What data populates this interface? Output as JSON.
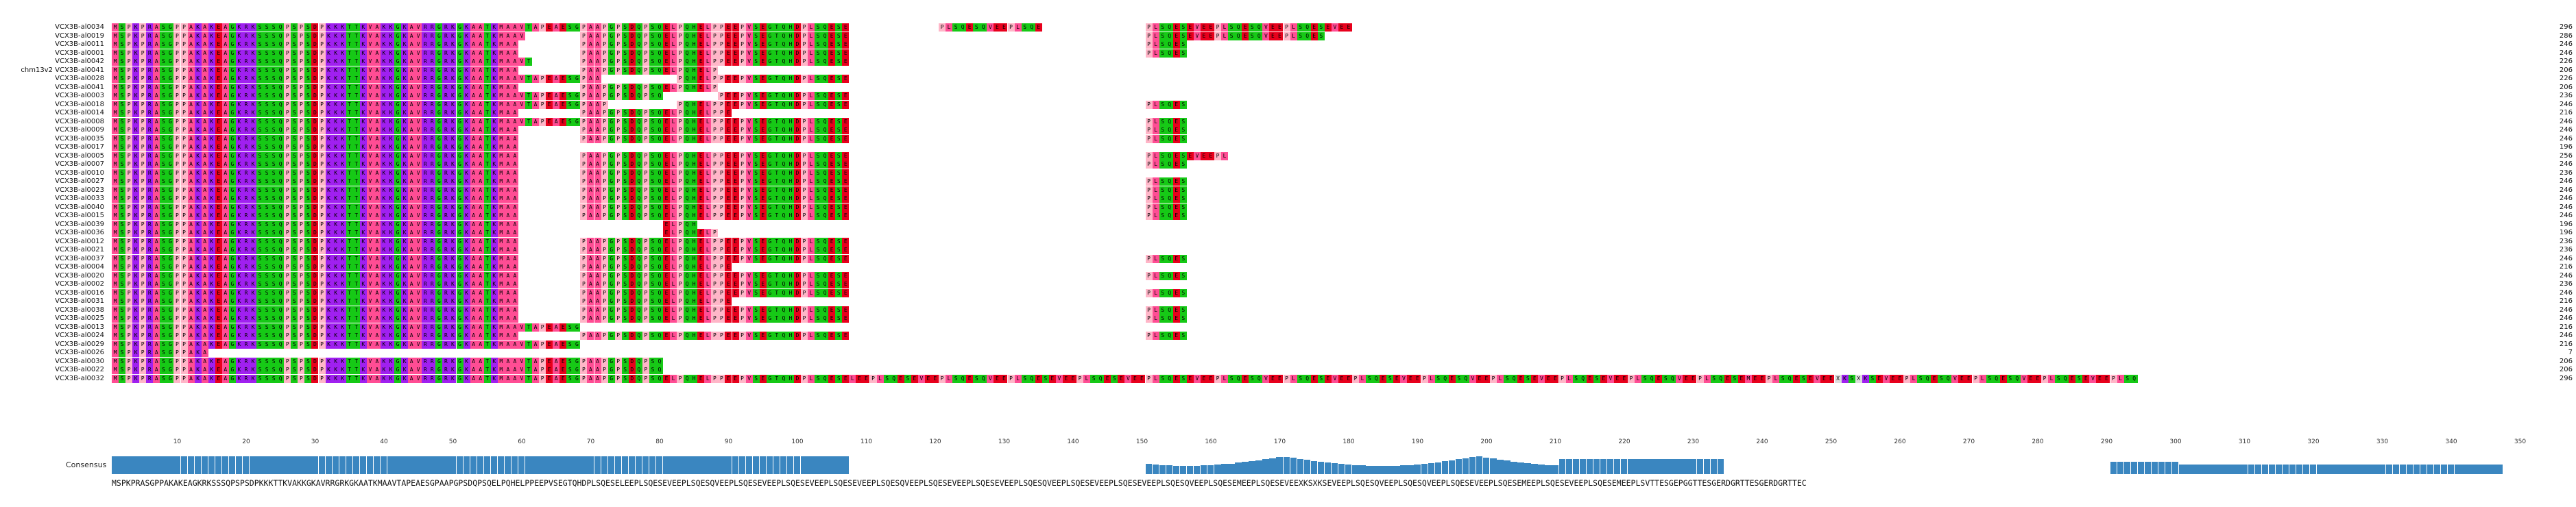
{
  "sequence_names": [
    "VCX3B-al0034",
    "VCX3B-al0019",
    "VCX3B-al0011",
    "VCX3B-al0001",
    "VCX3B-al0042",
    "chm13v2 VCX3B-al0041",
    "VCX3B-al0028",
    "VCX3B-al0041",
    "VCX3B-al0003",
    "VCX3B-al0018",
    "VCX3B-al0014",
    "VCX3B-al0008",
    "VCX3B-al0009",
    "VCX3B-al0035",
    "VCX3B-al0017",
    "VCX3B-al0005",
    "VCX3B-al0007",
    "VCX3B-al0010",
    "VCX3B-al0027",
    "VCX3B-al0023",
    "VCX3B-al0033",
    "VCX3B-al0040",
    "VCX3B-al0015",
    "VCX3B-al0039",
    "VCX3B-al0036",
    "VCX3B-al0012",
    "VCX3B-al0021",
    "VCX3B-al0037",
    "VCX3B-al0004",
    "VCX3B-al0020",
    "VCX3B-al0002",
    "VCX3B-al0016",
    "VCX3B-al0031",
    "VCX3B-al0038",
    "VCX3B-al0025",
    "VCX3B-al0013",
    "VCX3B-al0024",
    "VCX3B-al0029",
    "VCX3B-al0026",
    "VCX3B-al0030",
    "VCX3B-al0022",
    "VCX3B-al0032"
  ],
  "sequence_lengths": [
    "296",
    "286",
    "246",
    "246",
    "226",
    "206",
    "226",
    "206",
    "236",
    "246",
    "216",
    "246",
    "246",
    "246",
    "196",
    "256",
    "246",
    "236",
    "246",
    "246",
    "246",
    "246",
    "246",
    "196",
    "196",
    "236",
    "236",
    "246",
    "216",
    "246",
    "236",
    "246",
    "216",
    "246",
    "246",
    "216",
    "246",
    "216",
    "7",
    "206",
    "206",
    "296"
  ],
  "ruler_ticks": [
    "10",
    "20",
    "30",
    "40",
    "50",
    "60",
    "70",
    "80",
    "90",
    "100",
    "110",
    "120",
    "130",
    "140",
    "150",
    "160",
    "170",
    "180",
    "190",
    "200",
    "210",
    "220",
    "230",
    "240",
    "250",
    "260",
    "270",
    "280",
    "290",
    "300",
    "310",
    "320",
    "330",
    "340",
    "350"
  ],
  "consensus_label": "Consensus",
  "consensus_sequence": "MSPKPRASGPPAKAKEAGKRKSSSQPSPSDPKKKTTKVAKKGKAVRRGRKGKAATKMAAVTAPEAESGPAAPGPSDQPSQELPQHELPPEEPVSEGTQHDPLSQESELEEPLSQESEVEEPLSQESQVEEPLSQESEVEEPLSQESEVEEPLSQESEVEEPLSQESQVEEPLSQESEVEEPLSQESEVEEPLSQESQVEEPLSQESEVEEPLSQESEVEEPLSQESQVEEPLSQESEMEEPLSQESEVEEXKSXKSEVEEPLSQESQVEEPLSQESQVEEPLSQESEVEEPLSQESEMEEPLSQESEVEEPLSQESEMEEPLSVTTESGEPGGTTESGERDGRTTESGERDGRTTEC",
  "colors": {
    "hydrophobic": "#ff4d94",
    "charged": "#e8001c",
    "polar": "#16c916",
    "basic": "#a020f0",
    "small": "#ffb6c8",
    "consensus_bar": "#3a86c0"
  }
}
